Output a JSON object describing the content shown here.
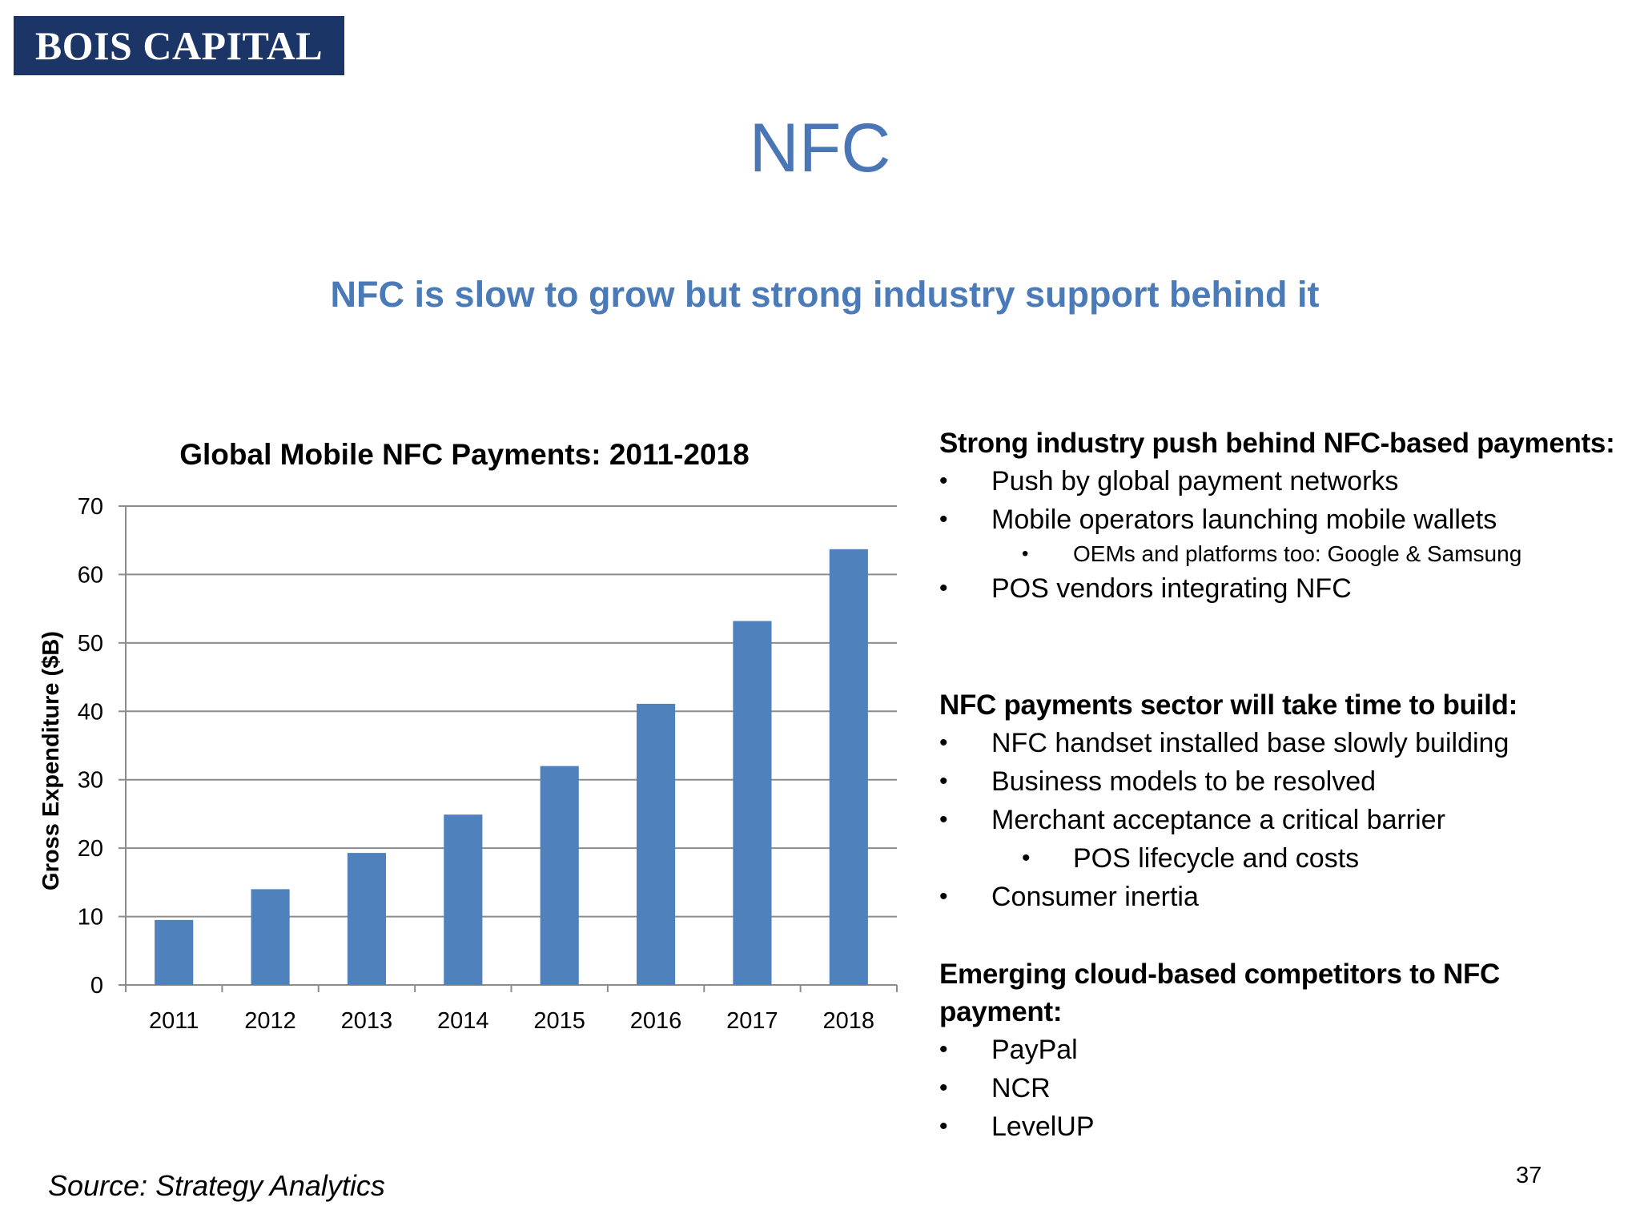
{
  "logo": {
    "text": "BOIS CAPITAL"
  },
  "title": "NFC",
  "subtitle": "NFC is slow to grow but strong industry support behind it",
  "chart_data": {
    "type": "bar",
    "title": "Global Mobile NFC Payments: 2011-2018",
    "xlabel": "",
    "ylabel": "Gross Expenditure ($B)",
    "categories": [
      "2011",
      "2012",
      "2013",
      "2014",
      "2015",
      "2016",
      "2017",
      "2018"
    ],
    "values": [
      9.5,
      14,
      19.3,
      24.9,
      32,
      41.1,
      53.2,
      63.7
    ],
    "ylim": [
      0,
      70
    ],
    "yticks": [
      0,
      10,
      20,
      30,
      40,
      50,
      60,
      70
    ],
    "grid": true,
    "bar_color": "#4f81bd"
  },
  "sections": [
    {
      "heading": "Strong industry push behind NFC-based payments:",
      "items": [
        {
          "text": "Push by global payment networks",
          "level": 1
        },
        {
          "text": "Mobile operators launching mobile wallets",
          "level": 1
        },
        {
          "text": "OEMs and platforms too: Google & Samsung",
          "level": 2,
          "small": true
        },
        {
          "text": "POS vendors integrating NFC",
          "level": 1
        }
      ]
    },
    {
      "heading": "NFC payments sector will take time to build:",
      "items": [
        {
          "text": "NFC handset installed base slowly building",
          "level": 1
        },
        {
          "text": "Business models to be resolved",
          "level": 1
        },
        {
          "text": "Merchant acceptance a critical barrier",
          "level": 1
        },
        {
          "text": "POS lifecycle and costs",
          "level": 2
        },
        {
          "text": "Consumer inertia",
          "level": 1
        }
      ]
    },
    {
      "heading": "Emerging cloud-based competitors to NFC payment:",
      "items": [
        {
          "text": "PayPal",
          "level": 1
        },
        {
          "text": "NCR",
          "level": 1
        },
        {
          "text": "LevelUP",
          "level": 1
        }
      ]
    }
  ],
  "source": "Source: Strategy Analytics",
  "page_number": "37",
  "colors": {
    "logo_bg": "#1b3567",
    "title": "#4a76b5",
    "bar": "#4f81bd"
  }
}
